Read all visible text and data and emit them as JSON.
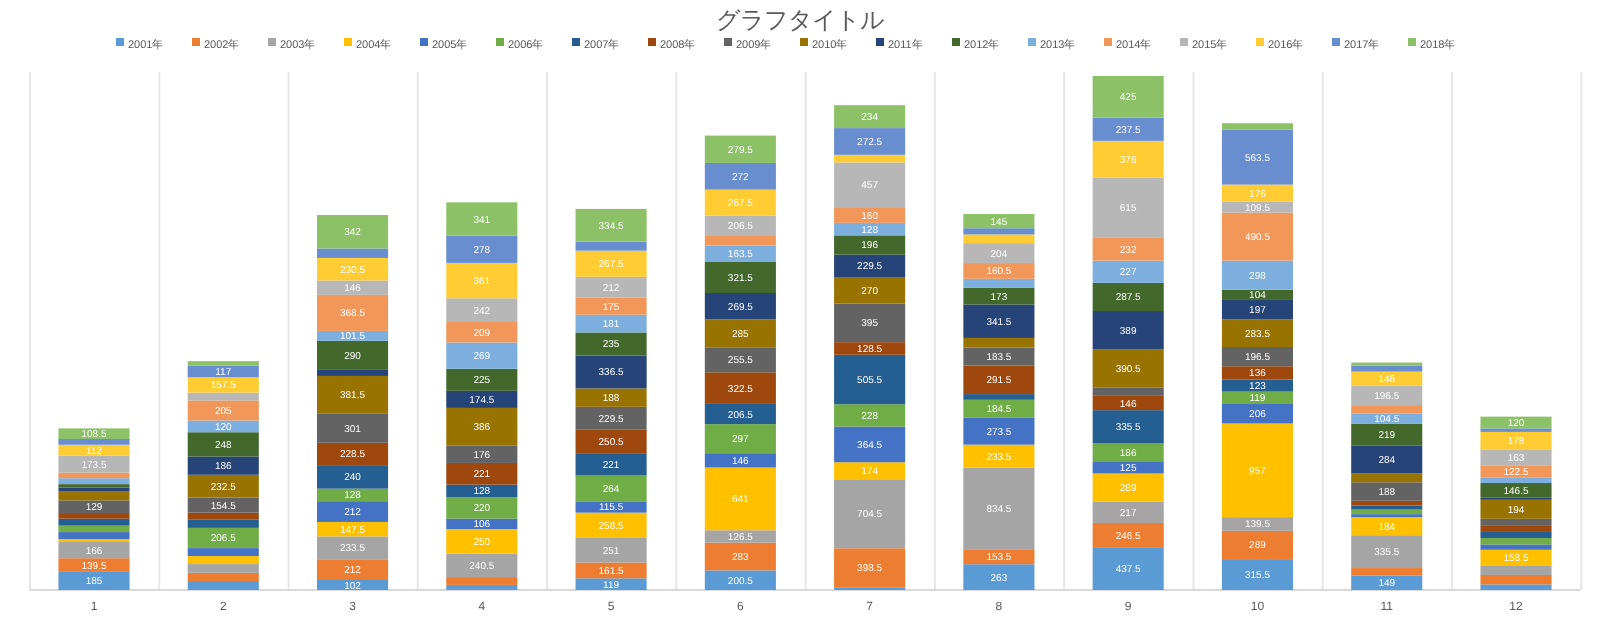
{
  "chart_data": {
    "type": "bar",
    "title": "グラフタイトル",
    "stacked": true,
    "legend": "top",
    "grid": "x",
    "categories": [
      "1",
      "2",
      "3",
      "4",
      "5",
      "6",
      "7",
      "8",
      "9",
      "10",
      "11",
      "12"
    ],
    "series": [
      {
        "name": "2001年",
        "color": "#5b9bd5",
        "values": [
          185,
          92,
          102,
          52,
          119,
          200.5,
          27.5,
          263,
          437.5,
          315.5,
          149,
          57
        ],
        "value_labels": [
          "185",
          null,
          "102",
          null,
          "119",
          "200.5",
          null,
          "263",
          "437.5",
          "315.5",
          "149",
          null
        ]
      },
      {
        "name": "2002年",
        "color": "#ed7d31",
        "values": [
          139.5,
          83.5,
          212,
          80,
          161.5,
          283,
          398.5,
          153.5,
          246.5,
          289,
          75,
          96.5
        ],
        "value_labels": [
          "139.5",
          null,
          "212",
          null,
          "161.5",
          "283",
          "398.5",
          "153.5",
          "246.5",
          "289",
          null,
          null
        ]
      },
      {
        "name": "2003年",
        "color": "#a5a5a5",
        "values": [
          166,
          89.5,
          233.5,
          240.5,
          251,
          126.5,
          704.5,
          834.5,
          217,
          139.5,
          335.5,
          99
        ],
        "value_labels": [
          "166",
          null,
          "233.5",
          "240.5",
          "251",
          "126.5",
          "704.5",
          "834.5",
          "217",
          "139.5",
          "335.5",
          null
        ]
      },
      {
        "name": "2004年",
        "color": "#ffc000",
        "values": [
          30,
          81.5,
          147.5,
          250,
          258.5,
          641,
          174,
          233.5,
          289,
          957,
          184,
          158.5
        ],
        "value_labels": [
          null,
          null,
          "147.5",
          "250",
          "258.5",
          "641",
          "174",
          "233.5",
          "289",
          "957",
          "184",
          "158.5"
        ]
      },
      {
        "name": "2005年",
        "color": "#4472c4",
        "values": [
          71,
          81.5,
          212,
          106,
          115.5,
          146,
          364.5,
          273.5,
          125,
          206,
          31,
          54
        ],
        "value_labels": [
          null,
          null,
          "212",
          "106",
          "115.5",
          "146",
          "364.5",
          "273.5",
          "125",
          "206",
          null,
          null
        ]
      },
      {
        "name": "2006年",
        "color": "#70ad47",
        "values": [
          65.5,
          206.5,
          128,
          220,
          264,
          297,
          228,
          184.5,
          186,
          119,
          47,
          65.5
        ],
        "value_labels": [
          null,
          "206.5",
          "128",
          "220",
          "264",
          "297",
          "228",
          "184.5",
          "186",
          "119",
          null,
          null
        ]
      },
      {
        "name": "2007年",
        "color": "#255e91",
        "values": [
          71,
          87,
          240,
          128,
          221,
          206.5,
          505.5,
          58,
          335.5,
          123,
          42,
          71
        ],
        "value_labels": [
          null,
          null,
          "240",
          "128",
          "221",
          "206.5",
          "505.5",
          null,
          "335.5",
          "123",
          null,
          null
        ]
      },
      {
        "name": "2008年",
        "color": "#9e480e",
        "values": [
          58,
          68.5,
          228.5,
          221,
          250.5,
          322.5,
          128.5,
          291.5,
          146,
          136,
          48,
          60.5
        ],
        "value_labels": [
          null,
          null,
          "228.5",
          "221",
          "250.5",
          "322.5",
          "128.5",
          "291.5",
          "146",
          "136",
          null,
          null
        ]
      },
      {
        "name": "2009年",
        "color": "#636363",
        "values": [
          129,
          154.5,
          301,
          176,
          229.5,
          255.5,
          395,
          183.5,
          87,
          196.5,
          188,
          65
        ],
        "value_labels": [
          "129",
          "154.5",
          "301",
          "176",
          "229.5",
          "255.5",
          "395",
          "183.5",
          null,
          "196.5",
          "188",
          null
        ]
      },
      {
        "name": "2010年",
        "color": "#997300",
        "values": [
          90,
          232.5,
          381.5,
          386,
          188,
          285,
          270,
          98.5,
          390.5,
          283.5,
          93.5,
          194
        ],
        "value_labels": [
          null,
          "232.5",
          "381.5",
          "386",
          "188",
          "285",
          "270",
          null,
          "390.5",
          "283.5",
          null,
          "194"
        ]
      },
      {
        "name": "2011年",
        "color": "#264478",
        "values": [
          41,
          186,
          68.5,
          174.5,
          336.5,
          269.5,
          229.5,
          341.5,
          389,
          197,
          284,
          25
        ],
        "value_labels": [
          null,
          "186",
          null,
          "174.5",
          "336.5",
          "269.5",
          "229.5",
          "341.5",
          "389",
          "197",
          "284",
          null
        ]
      },
      {
        "name": "2012年",
        "color": "#43682b",
        "values": [
          35,
          248,
          290,
          225,
          235,
          321.5,
          196,
          173,
          287.5,
          104,
          219,
          146.5
        ],
        "value_labels": [
          null,
          "248",
          "290",
          "225",
          "235",
          "321.5",
          "196",
          "173",
          "287.5",
          "104",
          "219",
          "146.5"
        ]
      },
      {
        "name": "2013年",
        "color": "#7cafdd",
        "values": [
          60.5,
          120,
          101.5,
          269,
          181,
          163.5,
          128,
          89.5,
          227,
          298,
          104.5,
          58.5
        ],
        "value_labels": [
          null,
          "120",
          "101.5",
          "269",
          "181",
          "163.5",
          "128",
          null,
          "227",
          "298",
          "104.5",
          null
        ]
      },
      {
        "name": "2014年",
        "color": "#f1975a",
        "values": [
          56.5,
          205,
          368.5,
          209,
          175,
          97,
          160,
          160.5,
          232,
          490.5,
          87.5,
          122.5
        ],
        "value_labels": [
          null,
          "205",
          "368.5",
          "209",
          "175",
          null,
          "160",
          "160.5",
          "232",
          "490.5",
          null,
          "122.5"
        ]
      },
      {
        "name": "2015年",
        "color": "#b7b7b7",
        "values": [
          173.5,
          79.5,
          146,
          242,
          212,
          206.5,
          457,
          204,
          615,
          109.5,
          196.5,
          163
        ],
        "value_labels": [
          "173.5",
          null,
          "146",
          "242",
          "212",
          "206.5",
          "457",
          "204",
          "615",
          "109.5",
          "196.5",
          "163"
        ]
      },
      {
        "name": "2016年",
        "color": "#ffcd33",
        "values": [
          112,
          157.5,
          230.5,
          361,
          267.5,
          267.5,
          78,
          88.5,
          376,
          176,
          146,
          178
        ],
        "value_labels": [
          "112",
          "157.5",
          "230.5",
          "361",
          "267.5",
          "267.5",
          null,
          null,
          "376",
          "176",
          "146",
          "178"
        ]
      },
      {
        "name": "2017年",
        "color": "#698ed0",
        "values": [
          58.5,
          117,
          96.5,
          278,
          91.5,
          272,
          272.5,
          63.5,
          237.5,
          563.5,
          62,
          36
        ],
        "value_labels": [
          null,
          "117",
          null,
          "278",
          null,
          "272",
          "272.5",
          null,
          "237.5",
          "563.5",
          null,
          null
        ]
      },
      {
        "name": "2018年",
        "color": "#8cc168",
        "values": [
          108.5,
          47,
          342,
          341,
          334.5,
          279.5,
          234,
          145,
          425,
          63,
          30,
          120
        ],
        "value_labels": [
          "108.5",
          null,
          "342",
          "341",
          "334.5",
          "279.5",
          "234",
          "145",
          "425",
          null,
          null,
          "120"
        ]
      }
    ]
  }
}
